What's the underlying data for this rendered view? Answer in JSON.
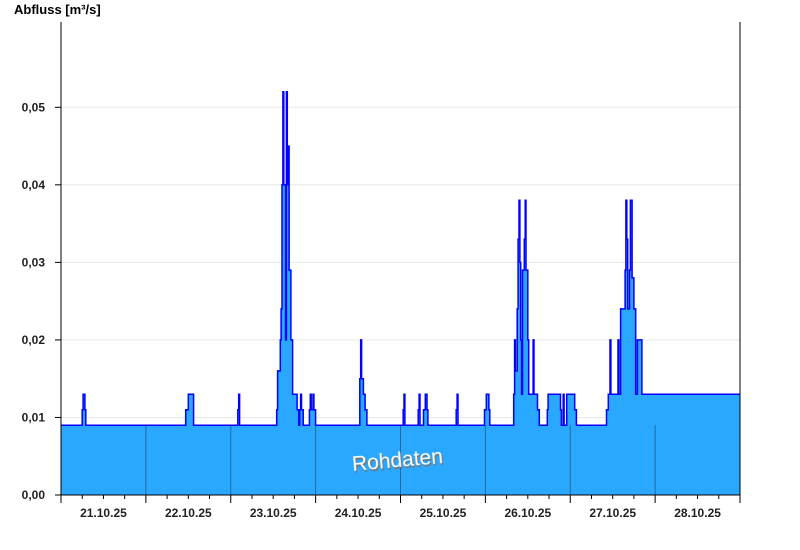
{
  "chart_data": {
    "type": "area",
    "ylabel": "Abfluss [m³/s]",
    "xlabel": "",
    "watermark": "Rohdaten",
    "ylim": [
      0,
      0.061
    ],
    "yticks": [
      0,
      0.01,
      0.02,
      0.03,
      0.04,
      0.05
    ],
    "ytick_labels": [
      "0,00",
      "0,01",
      "0,02",
      "0,03",
      "0,04",
      "0,05"
    ],
    "xlim": [
      "2025-10-21T00:00",
      "2025-10-29T00:00"
    ],
    "xtick_labels": [
      "21.10.25",
      "22.10.25",
      "23.10.25",
      "24.10.25",
      "25.10.25",
      "26.10.25",
      "27.10.25",
      "28.10.25"
    ],
    "grid": true,
    "step": true,
    "colors": {
      "fill": "#2aa8ff",
      "line": "#0000ff",
      "day_lines": "#1f6a9e",
      "grid": "#e8e8e8"
    },
    "series": [
      {
        "points": [
          [
            "2025-10-21T00:00",
            0.009
          ],
          [
            "2025-10-21T06:00",
            0.011
          ],
          [
            "2025-10-21T06:15",
            0.013
          ],
          [
            "2025-10-21T06:45",
            0.011
          ],
          [
            "2025-10-21T07:00",
            0.009
          ],
          [
            "2025-10-22T11:15",
            0.011
          ],
          [
            "2025-10-22T12:00",
            0.013
          ],
          [
            "2025-10-22T13:30",
            0.009
          ],
          [
            "2025-10-23T02:00",
            0.011
          ],
          [
            "2025-10-23T02:15",
            0.013
          ],
          [
            "2025-10-23T02:30",
            0.009
          ],
          [
            "2025-10-23T13:00",
            0.011
          ],
          [
            "2025-10-23T13:15",
            0.016
          ],
          [
            "2025-10-23T14:00",
            0.02
          ],
          [
            "2025-10-23T14:15",
            0.024
          ],
          [
            "2025-10-23T14:30",
            0.04
          ],
          [
            "2025-10-23T14:45",
            0.052
          ],
          [
            "2025-10-23T15:00",
            0.04
          ],
          [
            "2025-10-23T15:30",
            0.02
          ],
          [
            "2025-10-23T15:45",
            0.052
          ],
          [
            "2025-10-23T16:00",
            0.04
          ],
          [
            "2025-10-23T16:15",
            0.045
          ],
          [
            "2025-10-23T16:30",
            0.029
          ],
          [
            "2025-10-23T17:00",
            0.02
          ],
          [
            "2025-10-23T17:30",
            0.013
          ],
          [
            "2025-10-23T18:45",
            0.011
          ],
          [
            "2025-10-23T19:15",
            0.009
          ],
          [
            "2025-10-23T19:30",
            0.011
          ],
          [
            "2025-10-23T19:45",
            0.013
          ],
          [
            "2025-10-23T20:00",
            0.011
          ],
          [
            "2025-10-23T20:30",
            0.009
          ],
          [
            "2025-10-23T22:15",
            0.011
          ],
          [
            "2025-10-23T22:30",
            0.013
          ],
          [
            "2025-10-23T22:45",
            0.011
          ],
          [
            "2025-10-23T23:15",
            0.013
          ],
          [
            "2025-10-23T23:30",
            0.011
          ],
          [
            "2025-10-24T00:00",
            0.009
          ],
          [
            "2025-10-24T12:30",
            0.015
          ],
          [
            "2025-10-24T12:45",
            0.02
          ],
          [
            "2025-10-24T13:00",
            0.015
          ],
          [
            "2025-10-24T13:30",
            0.013
          ],
          [
            "2025-10-24T14:00",
            0.011
          ],
          [
            "2025-10-24T14:30",
            0.009
          ],
          [
            "2025-10-25T00:45",
            0.011
          ],
          [
            "2025-10-25T01:00",
            0.013
          ],
          [
            "2025-10-25T01:15",
            0.009
          ],
          [
            "2025-10-25T05:00",
            0.011
          ],
          [
            "2025-10-25T05:15",
            0.013
          ],
          [
            "2025-10-25T05:30",
            0.009
          ],
          [
            "2025-10-25T06:30",
            0.011
          ],
          [
            "2025-10-25T07:00",
            0.013
          ],
          [
            "2025-10-25T07:30",
            0.011
          ],
          [
            "2025-10-25T07:45",
            0.009
          ],
          [
            "2025-10-25T15:45",
            0.011
          ],
          [
            "2025-10-25T16:00",
            0.013
          ],
          [
            "2025-10-25T16:15",
            0.009
          ],
          [
            "2025-10-25T23:45",
            0.011
          ],
          [
            "2025-10-26T00:15",
            0.013
          ],
          [
            "2025-10-26T01:00",
            0.011
          ],
          [
            "2025-10-26T01:15",
            0.009
          ],
          [
            "2025-10-26T08:00",
            0.013
          ],
          [
            "2025-10-26T08:15",
            0.02
          ],
          [
            "2025-10-26T08:30",
            0.016
          ],
          [
            "2025-10-26T09:00",
            0.024
          ],
          [
            "2025-10-26T09:15",
            0.033
          ],
          [
            "2025-10-26T09:30",
            0.038
          ],
          [
            "2025-10-26T09:45",
            0.03
          ],
          [
            "2025-10-26T10:00",
            0.02
          ],
          [
            "2025-10-26T10:15",
            0.013
          ],
          [
            "2025-10-26T10:30",
            0.029
          ],
          [
            "2025-10-26T11:00",
            0.033
          ],
          [
            "2025-10-26T11:15",
            0.038
          ],
          [
            "2025-10-26T11:30",
            0.029
          ],
          [
            "2025-10-26T12:00",
            0.02
          ],
          [
            "2025-10-26T12:15",
            0.013
          ],
          [
            "2025-10-26T13:30",
            0.02
          ],
          [
            "2025-10-26T13:45",
            0.013
          ],
          [
            "2025-10-26T14:45",
            0.011
          ],
          [
            "2025-10-26T15:15",
            0.009
          ],
          [
            "2025-10-26T17:30",
            0.011
          ],
          [
            "2025-10-26T17:45",
            0.013
          ],
          [
            "2025-10-26T21:15",
            0.011
          ],
          [
            "2025-10-26T21:30",
            0.009
          ],
          [
            "2025-10-26T22:00",
            0.013
          ],
          [
            "2025-10-26T22:15",
            0.009
          ],
          [
            "2025-10-26T23:00",
            0.013
          ],
          [
            "2025-10-27T01:15",
            0.011
          ],
          [
            "2025-10-27T01:45",
            0.009
          ],
          [
            "2025-10-27T10:15",
            0.011
          ],
          [
            "2025-10-27T10:45",
            0.013
          ],
          [
            "2025-10-27T11:15",
            0.02
          ],
          [
            "2025-10-27T11:30",
            0.013
          ],
          [
            "2025-10-27T13:30",
            0.02
          ],
          [
            "2025-10-27T13:45",
            0.013
          ],
          [
            "2025-10-27T14:15",
            0.024
          ],
          [
            "2025-10-27T15:30",
            0.029
          ],
          [
            "2025-10-27T15:45",
            0.038
          ],
          [
            "2025-10-27T16:00",
            0.033
          ],
          [
            "2025-10-27T16:15",
            0.024
          ],
          [
            "2025-10-27T16:45",
            0.029
          ],
          [
            "2025-10-27T17:00",
            0.038
          ],
          [
            "2025-10-27T17:30",
            0.028
          ],
          [
            "2025-10-27T18:00",
            0.024
          ],
          [
            "2025-10-27T18:30",
            0.013
          ],
          [
            "2025-10-27T19:00",
            0.02
          ],
          [
            "2025-10-27T20:15",
            0.013
          ],
          [
            "2025-10-29T00:00",
            0.013
          ]
        ]
      }
    ]
  }
}
